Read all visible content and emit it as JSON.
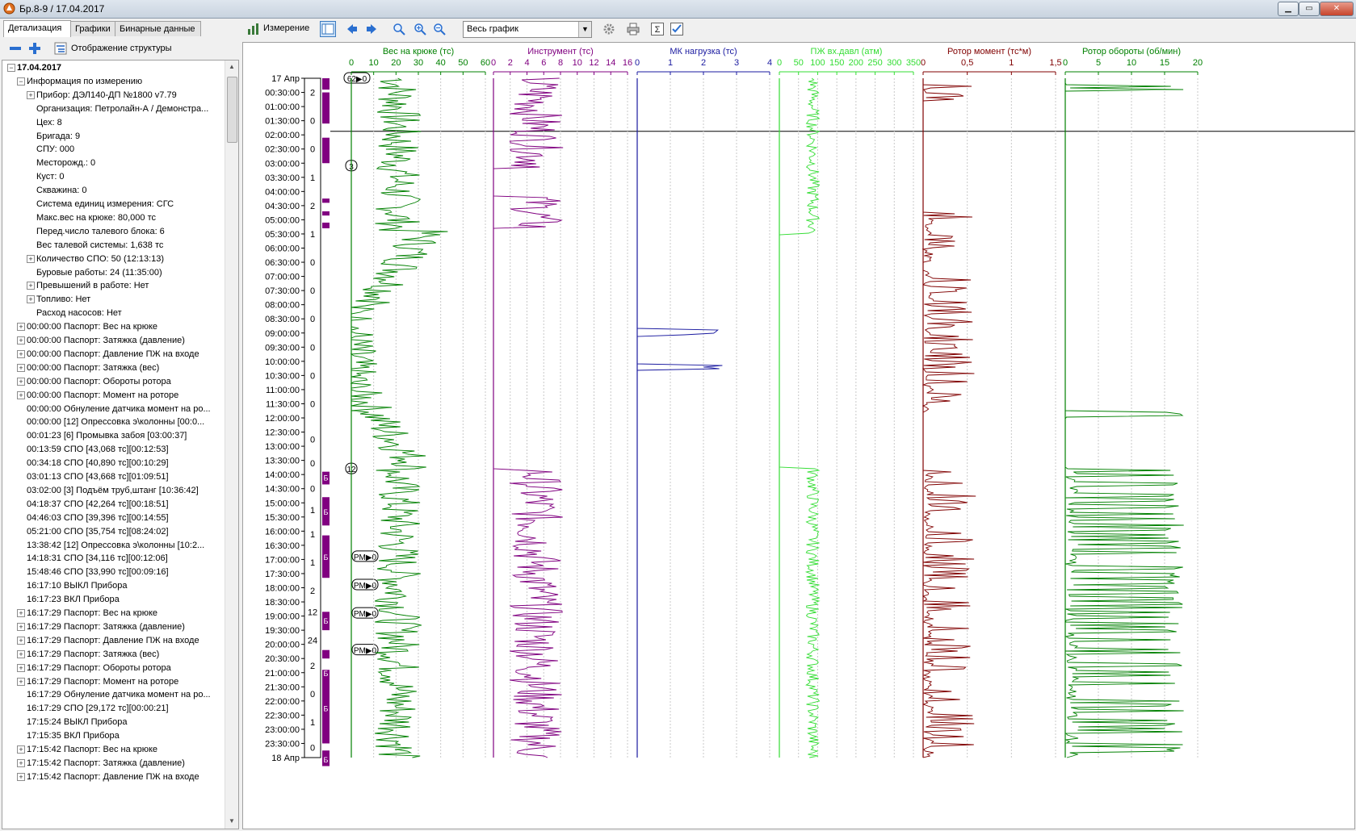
{
  "window": {
    "title": "Бр.8-9 / 17.04.2017"
  },
  "tabs": [
    {
      "label": "Детализация",
      "active": true
    },
    {
      "label": "Графики",
      "active": false
    },
    {
      "label": "Бинарные данные",
      "active": false
    }
  ],
  "left_toolbar": {
    "structure_label": "Отображение структуры"
  },
  "tree": {
    "date_node": "17.04.2017",
    "info_node": "Информация по измерению",
    "info_items": [
      {
        "text": "Прибор: ДЭЛ140-ДП №1800 v7.79",
        "expandable": true
      },
      {
        "text": "Организация: Петролайн-А / Демонстра...",
        "expandable": false
      },
      {
        "text": "Цех: 8",
        "expandable": false
      },
      {
        "text": "Бригада: 9",
        "expandable": false
      },
      {
        "text": "СПУ: 000",
        "expandable": false
      },
      {
        "text": "Месторожд.: 0",
        "expandable": false
      },
      {
        "text": "Куст: 0",
        "expandable": false
      },
      {
        "text": "Скважина: 0",
        "expandable": false
      },
      {
        "text": "Система единиц измерения: СГС",
        "expandable": false
      },
      {
        "text": "Макс.вес на крюке: 80,000 тс",
        "expandable": false
      },
      {
        "text": "Перед.число талевого блока: 6",
        "expandable": false
      },
      {
        "text": "Вес талевой системы: 1,638 тс",
        "expandable": false
      },
      {
        "text": "Количество СПО: 50 (12:13:13)",
        "expandable": true
      },
      {
        "text": "Буровые работы: 24 (11:35:00)",
        "expandable": false
      },
      {
        "text": "Превышений в работе: Нет",
        "expandable": true
      },
      {
        "text": "Топливо: Нет",
        "expandable": true
      },
      {
        "text": "Расход насосов: Нет",
        "expandable": false
      }
    ],
    "events": [
      {
        "text": "00:00:00  Паспорт: Вес на крюке",
        "expandable": true
      },
      {
        "text": "00:00:00  Паспорт: Затяжка (давление)",
        "expandable": true
      },
      {
        "text": "00:00:00  Паспорт: Давление ПЖ на входе",
        "expandable": true
      },
      {
        "text": "00:00:00  Паспорт: Затяжка (вес)",
        "expandable": true
      },
      {
        "text": "00:00:00  Паспорт: Обороты ротора",
        "expandable": true
      },
      {
        "text": "00:00:00  Паспорт: Момент на роторе",
        "expandable": true
      },
      {
        "text": "00:00:00  Обнуление датчика момент на ро...",
        "expandable": false
      },
      {
        "text": "00:00:00  [12] Опрессовка э\\колонны [00:0...",
        "expandable": false
      },
      {
        "text": "00:01:23  [6] Промывка забоя [03:00:37]",
        "expandable": false
      },
      {
        "text": "00:13:59  СПО [43,068 тс][00:12:53]",
        "expandable": false
      },
      {
        "text": "00:34:18  СПО [40,890 тс][00:10:29]",
        "expandable": false
      },
      {
        "text": "03:01:13  СПО [43,668 тс][01:09:51]",
        "expandable": false
      },
      {
        "text": "03:02:00  [3] Подъём труб,штанг [10:36:42]",
        "expandable": false
      },
      {
        "text": "04:18:37  СПО [42,264 тс][00:18:51]",
        "expandable": false
      },
      {
        "text": "04:46:03  СПО [39,396 тс][00:14:55]",
        "expandable": false
      },
      {
        "text": "05:21:00  СПО [35,754 тс][08:24:02]",
        "expandable": false
      },
      {
        "text": "13:38:42  [12] Опрессовка э\\колонны [10:2...",
        "expandable": false
      },
      {
        "text": "14:18:31  СПО [34,116 тс][00:12:06]",
        "expandable": false
      },
      {
        "text": "15:48:46  СПО [33,990 тс][00:09:16]",
        "expandable": false
      },
      {
        "text": "16:17:10  ВЫКЛ Прибора",
        "expandable": false
      },
      {
        "text": "16:17:23  ВКЛ Прибора",
        "expandable": false
      },
      {
        "text": "16:17:29  Паспорт: Вес на крюке",
        "expandable": true
      },
      {
        "text": "16:17:29  Паспорт: Затяжка (давление)",
        "expandable": true
      },
      {
        "text": "16:17:29  Паспорт: Давление ПЖ на входе",
        "expandable": true
      },
      {
        "text": "16:17:29  Паспорт: Затяжка (вес)",
        "expandable": true
      },
      {
        "text": "16:17:29  Паспорт: Обороты ротора",
        "expandable": true
      },
      {
        "text": "16:17:29  Паспорт: Момент на роторе",
        "expandable": true
      },
      {
        "text": "16:17:29  Обнуление датчика момент на ро...",
        "expandable": false
      },
      {
        "text": "16:17:29  СПО [29,172 тс][00:00:21]",
        "expandable": false
      },
      {
        "text": "17:15:24  ВЫКЛ Прибора",
        "expandable": false
      },
      {
        "text": "17:15:35  ВКЛ Прибора",
        "expandable": false
      },
      {
        "text": "17:15:42  Паспорт: Вес на крюке",
        "expandable": true
      },
      {
        "text": "17:15:42  Паспорт: Затяжка (давление)",
        "expandable": true
      },
      {
        "text": "17:15:42  Паспорт: Давление ПЖ на входе",
        "expandable": true
      }
    ]
  },
  "main_toolbar": {
    "measure_label": "Измерение",
    "range_select": "Весь график"
  },
  "chart_data": {
    "type": "line",
    "time_axis": {
      "labels": [
        "17 Апр",
        "00:30:00",
        "01:00:00",
        "01:30:00",
        "02:00:00",
        "02:30:00",
        "03:00:00",
        "03:30:00",
        "04:00:00",
        "04:30:00",
        "05:00:00",
        "05:30:00",
        "06:00:00",
        "06:30:00",
        "07:00:00",
        "07:30:00",
        "08:00:00",
        "08:30:00",
        "09:00:00",
        "09:30:00",
        "10:00:00",
        "10:30:00",
        "11:00:00",
        "11:30:00",
        "12:00:00",
        "12:30:00",
        "13:00:00",
        "13:30:00",
        "14:00:00",
        "14:30:00",
        "15:00:00",
        "15:30:00",
        "16:00:00",
        "16:30:00",
        "17:00:00",
        "17:30:00",
        "18:00:00",
        "18:30:00",
        "19:00:00",
        "19:30:00",
        "20:00:00",
        "20:30:00",
        "21:00:00",
        "21:30:00",
        "22:00:00",
        "22:30:00",
        "23:00:00",
        "23:30:00",
        "18 Апр"
      ]
    },
    "operation_marks": [
      "2",
      "0",
      "0",
      "1",
      "2",
      "1",
      "0",
      "0",
      "0",
      "0",
      "0",
      "0",
      "0",
      "0",
      "0",
      "1",
      "1",
      "1",
      "2",
      "12",
      "24",
      "2",
      "0",
      "1",
      "0"
    ],
    "operation_letter": "Б",
    "event_markers": [
      "62▶0",
      "3",
      "12",
      "PM▶0",
      "PM▶0",
      "PM▶0",
      "PM▶0"
    ],
    "tracks": [
      {
        "name": "Вес на крюке (тс)",
        "color": "#008000",
        "ticks": [
          "0",
          "10",
          "20",
          "30",
          "40",
          "50",
          "60"
        ]
      },
      {
        "name": "Инструмент (тс)",
        "color": "#800080",
        "ticks": [
          "0",
          "2",
          "4",
          "6",
          "8",
          "10",
          "12",
          "14",
          "16"
        ]
      },
      {
        "name": "МК нагрузка (тс)",
        "color": "#1a1aa0",
        "ticks": [
          "0",
          "1",
          "2",
          "3",
          "4"
        ]
      },
      {
        "name": "ПЖ вх.давл (атм)",
        "color": "#33dd33",
        "ticks": [
          "0",
          "50",
          "100",
          "150",
          "200",
          "250",
          "300",
          "350"
        ]
      },
      {
        "name": "Ротор момент (тс*м)",
        "color": "#800000",
        "ticks": [
          "0",
          "0,5",
          "1",
          "1,5"
        ]
      },
      {
        "name": "Ротор обороты (об/мин)",
        "color": "#008000",
        "ticks": [
          "0",
          "5",
          "10",
          "15",
          "20"
        ]
      }
    ]
  }
}
